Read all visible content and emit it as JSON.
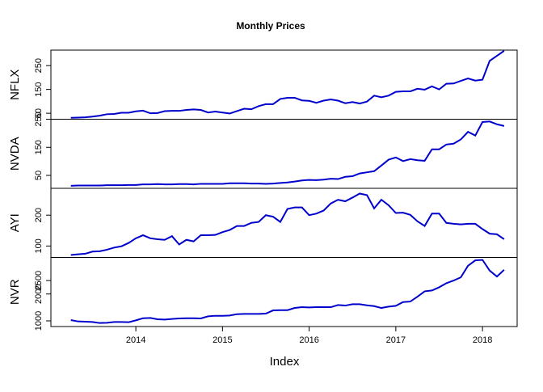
{
  "title": "Monthly Prices",
  "x_label": "Index",
  "x": [
    2013.25,
    2013.333,
    2013.417,
    2013.5,
    2013.583,
    2013.667,
    2013.75,
    2013.833,
    2013.917,
    2014.0,
    2014.083,
    2014.167,
    2014.25,
    2014.333,
    2014.417,
    2014.5,
    2014.583,
    2014.667,
    2014.75,
    2014.833,
    2014.917,
    2015.0,
    2015.083,
    2015.167,
    2015.25,
    2015.333,
    2015.417,
    2015.5,
    2015.583,
    2015.667,
    2015.75,
    2015.833,
    2015.917,
    2016.0,
    2016.083,
    2016.167,
    2016.25,
    2016.333,
    2016.417,
    2016.5,
    2016.583,
    2016.667,
    2016.75,
    2016.833,
    2016.917,
    2017.0,
    2017.083,
    2017.167,
    2017.25,
    2017.333,
    2017.417,
    2017.5,
    2017.583,
    2017.667,
    2017.75,
    2017.833,
    2017.917,
    2018.0,
    2018.083,
    2018.167,
    2018.25
  ],
  "xlim": [
    2013.02,
    2018.4
  ],
  "xticks": [
    2014,
    2015,
    2016,
    2017,
    2018
  ],
  "chart_data": [
    {
      "type": "line",
      "y_label": "NFLX",
      "color": "#0000cd",
      "ylim": [
        25,
        315
      ],
      "yticks": [
        50,
        150,
        250
      ],
      "values": [
        31,
        32,
        33,
        36,
        40,
        46,
        47,
        52,
        52,
        58,
        61,
        50,
        51,
        59,
        60,
        60,
        64,
        66,
        64,
        53,
        57,
        53,
        49,
        59,
        69,
        67,
        80,
        88,
        88,
        110,
        115,
        115,
        104,
        102,
        94,
        103,
        108,
        103,
        92,
        97,
        91,
        99,
        124,
        117,
        124,
        140,
        142,
        142,
        153,
        149,
        163,
        150,
        174,
        175,
        186,
        196,
        187,
        191,
        270,
        291,
        312
      ]
    },
    {
      "type": "line",
      "y_label": "NVDA",
      "color": "#0000cd",
      "ylim": [
        4,
        250
      ],
      "yticks": [
        50,
        150,
        250
      ],
      "values": [
        13,
        14,
        14,
        14,
        14,
        15,
        15,
        15,
        16,
        16,
        18,
        18,
        19,
        18,
        18,
        19,
        19,
        18,
        20,
        20,
        20,
        20,
        22,
        22,
        22,
        21,
        21,
        20,
        21,
        23,
        25,
        28,
        32,
        34,
        33,
        35,
        38,
        37,
        45,
        47,
        57,
        61,
        65,
        85,
        106,
        114,
        101,
        108,
        104,
        102,
        143,
        143,
        160,
        163,
        178,
        205,
        192,
        240,
        242,
        232,
        226
      ]
    },
    {
      "type": "line",
      "y_label": "AYI",
      "color": "#0000cd",
      "ylim": [
        63,
        287
      ],
      "yticks": [
        100,
        200
      ],
      "values": [
        71,
        73,
        75,
        82,
        83,
        88,
        95,
        99,
        110,
        125,
        135,
        125,
        122,
        120,
        132,
        105,
        120,
        115,
        135,
        135,
        136,
        145,
        152,
        165,
        165,
        175,
        178,
        200,
        195,
        178,
        220,
        225,
        225,
        200,
        205,
        215,
        238,
        250,
        245,
        257,
        270,
        265,
        222,
        250,
        232,
        207,
        208,
        201,
        180,
        165,
        205,
        205,
        175,
        172,
        170,
        172,
        172,
        155,
        140,
        138,
        122
      ]
    },
    {
      "type": "line",
      "y_label": "NVR",
      "color": "#0000cd",
      "ylim": [
        790,
        3360
      ],
      "yticks": [
        1000,
        2000,
        2500
      ],
      "values": [
        1030,
        980,
        970,
        960,
        920,
        930,
        960,
        960,
        950,
        1020,
        1100,
        1110,
        1060,
        1050,
        1070,
        1090,
        1100,
        1100,
        1090,
        1170,
        1190,
        1190,
        1200,
        1250,
        1260,
        1260,
        1260,
        1270,
        1390,
        1400,
        1400,
        1480,
        1510,
        1500,
        1510,
        1510,
        1510,
        1590,
        1570,
        1620,
        1620,
        1580,
        1550,
        1480,
        1530,
        1560,
        1700,
        1720,
        1900,
        2100,
        2130,
        2250,
        2400,
        2500,
        2620,
        3050,
        3250,
        3270,
        2870,
        2650,
        2900
      ]
    }
  ]
}
